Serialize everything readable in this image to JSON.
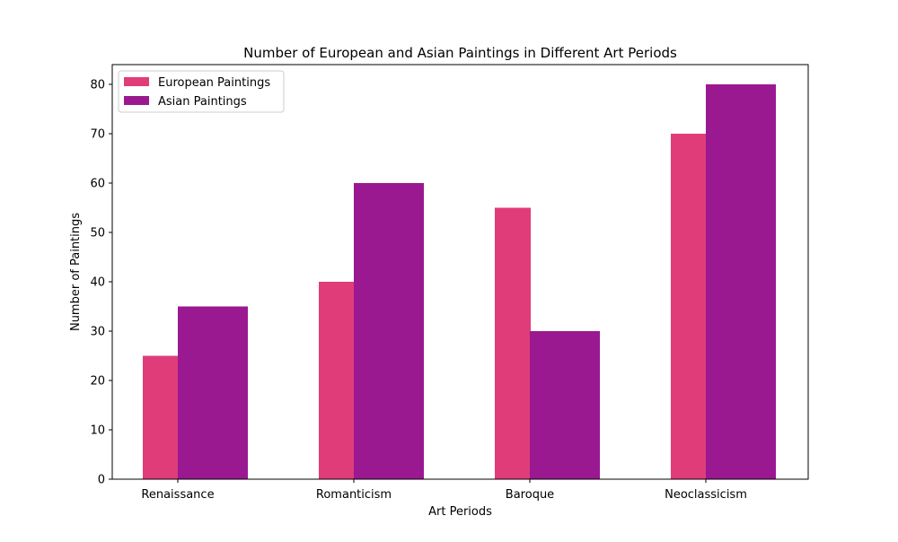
{
  "chart_data": {
    "type": "bar",
    "title": "Number of European and Asian Paintings in Different Art Periods",
    "xlabel": "Art Periods",
    "ylabel": "Number of Paintings",
    "categories": [
      "Renaissance",
      "Romanticism",
      "Baroque",
      "Neoclassicism"
    ],
    "series": [
      {
        "name": "European Paintings",
        "values": [
          25,
          40,
          55,
          70
        ],
        "color": "#e03c7a"
      },
      {
        "name": "Asian Paintings",
        "values": [
          35,
          60,
          30,
          80
        ],
        "color": "#9a1991"
      }
    ],
    "ylim": [
      0,
      84
    ],
    "yticks": [
      0,
      10,
      20,
      30,
      40,
      50,
      60,
      70,
      80
    ],
    "grid": false,
    "legend_position": "top-left"
  }
}
